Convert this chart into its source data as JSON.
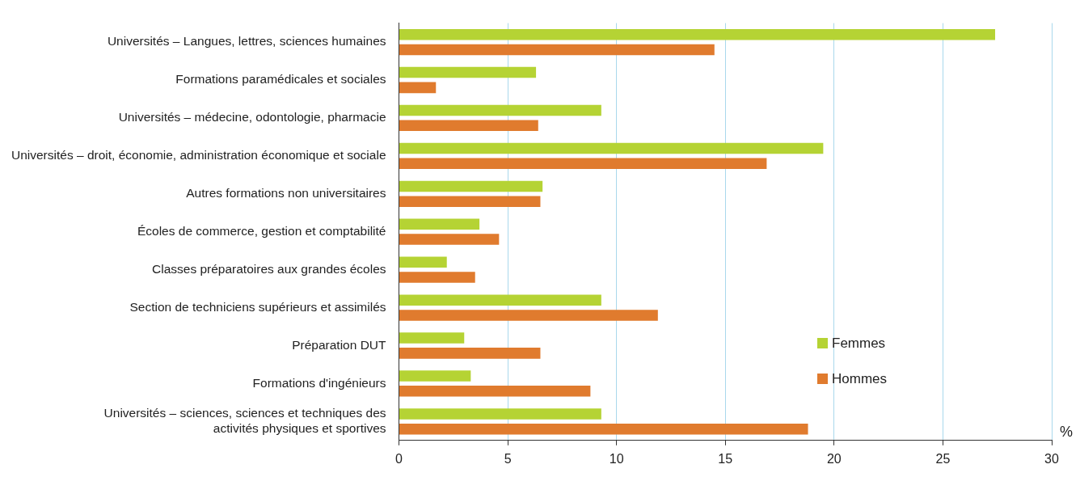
{
  "chart_data": {
    "type": "bar",
    "orientation": "horizontal",
    "xlabel": "%",
    "categories": [
      "Universités – Langues, lettres, sciences humaines",
      "Formations paramédicales et sociales",
      "Universités – médecine, odontologie, pharmacie",
      "Universités – droit, économie, administration économique et sociale",
      "Autres formations non universitaires",
      "Écoles de commerce, gestion et comptabilité",
      "Classes préparatoires aux grandes écoles",
      "Section de techniciens supérieurs et assimilés",
      "Préparation DUT",
      "Formations d'ingénieurs",
      "Universités – sciences, sciences et techniques des activités physiques et sportives"
    ],
    "series": [
      {
        "name": "Femmes",
        "color": "#b5d334",
        "values": [
          27.4,
          6.3,
          9.3,
          19.5,
          6.6,
          3.7,
          2.2,
          9.3,
          3.0,
          3.3,
          9.3
        ]
      },
      {
        "name": "Hommes",
        "color": "#e07b2e",
        "values": [
          14.5,
          1.7,
          6.4,
          16.9,
          6.5,
          4.6,
          3.5,
          11.9,
          6.5,
          8.8,
          18.8
        ]
      }
    ],
    "xlim": [
      0,
      30
    ],
    "xticks": [
      0,
      5,
      10,
      15,
      20,
      25,
      30
    ],
    "grid": "x",
    "legend": "bottom right"
  }
}
